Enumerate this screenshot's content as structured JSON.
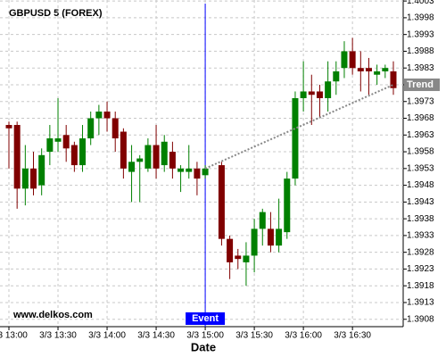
{
  "chart_data": {
    "type": "candlestick",
    "title": "GBPUSD 5 (FOREX)",
    "watermark": "www.delkos.com",
    "x_label": "Date",
    "categories": [
      "3/3 13:00",
      null,
      null,
      null,
      null,
      null,
      "3/3 13:30",
      null,
      null,
      null,
      null,
      null,
      "3/3 14:00",
      null,
      null,
      null,
      null,
      null,
      "3/3 14:30",
      null,
      null,
      null,
      null,
      null,
      "3/3 15:00",
      null,
      null,
      null,
      null,
      null,
      "3/3 15:30",
      null,
      null,
      null,
      null,
      null,
      "3/3 16:00",
      null,
      null,
      null,
      null,
      null,
      "3/3 16:30",
      null,
      null,
      null,
      null,
      null
    ],
    "open": [
      1.3966,
      1.3966,
      1.3947,
      1.3953,
      1.3948,
      1.3958,
      1.3961,
      1.3963,
      1.396,
      1.3954,
      1.3962,
      1.3968,
      1.397,
      1.3968,
      1.3964,
      1.3952,
      1.3955,
      1.3953,
      1.396,
      1.3954,
      1.3958,
      1.3952,
      1.3952,
      1.3953,
      1.3951,
      null,
      1.3954,
      1.3932,
      1.3927,
      1.3925,
      1.3927,
      1.3935,
      1.3935,
      1.393,
      1.3934,
      1.395,
      1.3974,
      1.3976,
      1.3976,
      1.3974,
      1.3979,
      1.3983,
      1.3988,
      1.3983,
      1.3983,
      1.3981,
      1.3982,
      1.3982
    ],
    "high": [
      1.3967,
      1.3967,
      1.396,
      1.3958,
      1.3959,
      1.3966,
      1.3974,
      1.3966,
      1.3961,
      1.3966,
      1.397,
      1.3972,
      1.3973,
      1.397,
      1.3965,
      1.396,
      1.3957,
      1.3962,
      1.3966,
      1.3963,
      1.3961,
      1.3954,
      1.396,
      1.3955,
      1.3954,
      null,
      1.3955,
      1.3933,
      1.3929,
      1.3931,
      1.3938,
      1.3941,
      1.394,
      1.3944,
      1.3952,
      1.3976,
      1.3985,
      1.3981,
      1.3978,
      1.3985,
      1.3985,
      1.3991,
      1.3992,
      1.3988,
      1.3986,
      1.3984,
      1.3984,
      1.3985
    ],
    "low": [
      1.3953,
      1.3941,
      1.3942,
      1.3945,
      1.3945,
      1.3954,
      1.3958,
      1.3955,
      1.3952,
      1.3952,
      1.396,
      1.3963,
      1.3964,
      1.3958,
      1.395,
      1.3943,
      1.3943,
      1.3952,
      1.395,
      1.3952,
      1.395,
      1.3946,
      1.395,
      1.3945,
      1.395,
      null,
      1.393,
      1.392,
      1.3923,
      1.3918,
      1.3922,
      1.393,
      1.3928,
      1.3928,
      1.3932,
      1.3948,
      1.397,
      1.3966,
      1.3968,
      1.397,
      1.3975,
      1.398,
      1.3981,
      1.3976,
      1.3975,
      1.3978,
      1.398,
      1.3975
    ],
    "close": [
      1.3965,
      1.3947,
      1.3953,
      1.3947,
      1.3957,
      1.3962,
      1.3962,
      1.3959,
      1.3954,
      1.3962,
      1.3968,
      1.397,
      1.3968,
      1.3962,
      1.3953,
      1.3955,
      1.3956,
      1.396,
      1.3953,
      1.3961,
      1.3953,
      1.3953,
      1.3953,
      1.395,
      1.3953,
      null,
      1.3932,
      1.3925,
      1.3926,
      1.3927,
      1.3935,
      1.394,
      1.393,
      1.3935,
      1.395,
      1.3974,
      1.3976,
      1.3975,
      1.3974,
      1.3979,
      1.3982,
      1.3988,
      1.3983,
      1.3982,
      1.3982,
      1.3982,
      1.3983,
      1.3977
    ],
    "up_color": "#008000",
    "down_color": "#800000",
    "event": {
      "label": "Event",
      "at": "3/3 15:00",
      "color": "#0000ff"
    },
    "trend": {
      "name": "Trend",
      "values": [
        1.3953,
        1.3978
      ],
      "color": "#888888"
    },
    "ylim": [
      1.39058,
      1.40033
    ],
    "yticks": [
      1.3908,
      1.3913,
      1.3918,
      1.3923,
      1.3928,
      1.3933,
      1.3938,
      1.3943,
      1.3948,
      1.3953,
      1.3958,
      1.3963,
      1.3968,
      1.3973,
      1.3978,
      1.3983,
      1.3988,
      1.3993,
      1.3998,
      1.4003
    ],
    "grid": true
  }
}
